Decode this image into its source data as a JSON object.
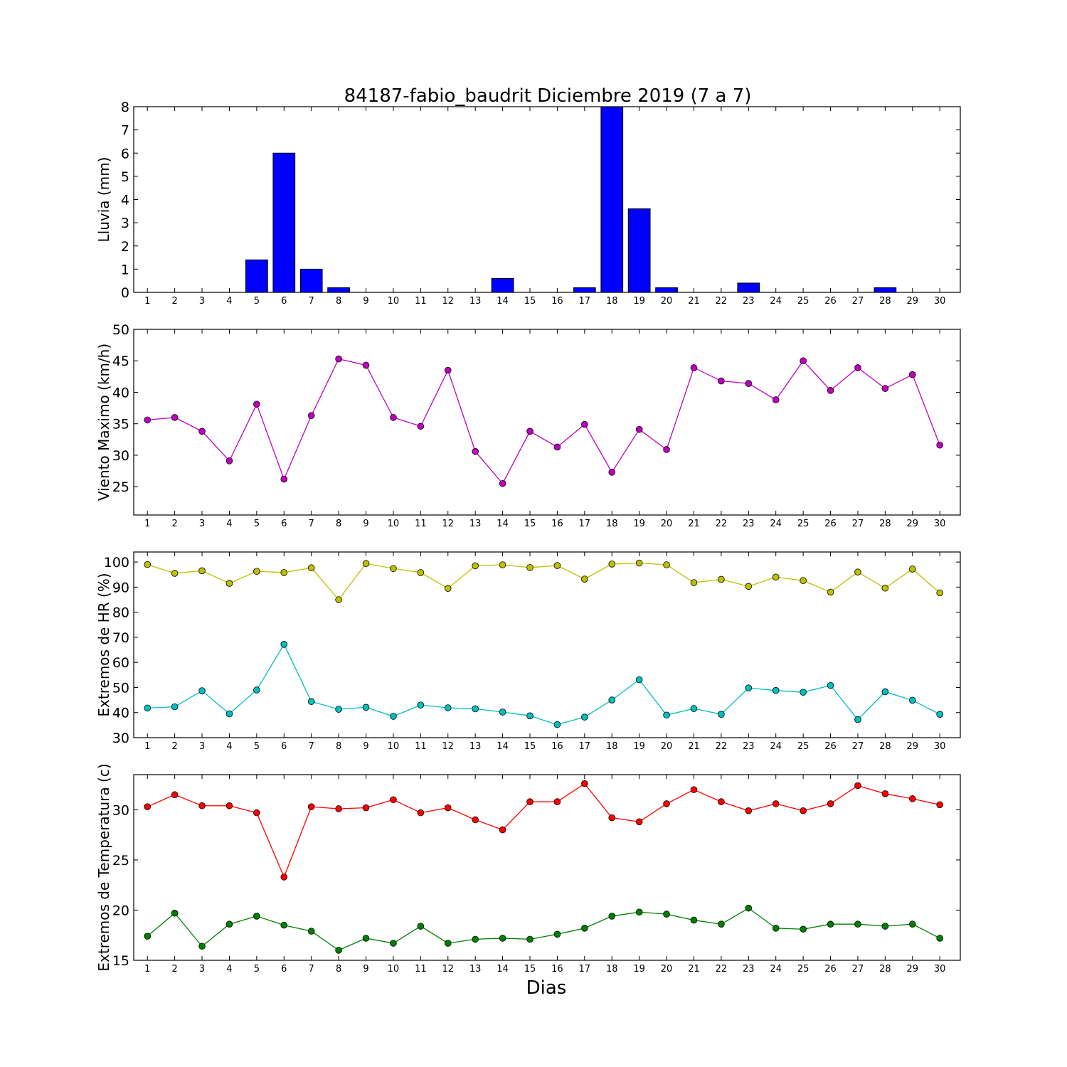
{
  "title": "84187-fabio_baudrit Diciembre 2019  (7 a 7)",
  "xlabel": "Dias",
  "chart_data": [
    {
      "type": "bar",
      "ylabel": "Lluvia (mm)",
      "ylim": [
        0,
        8
      ],
      "yticks": [
        0,
        1,
        2,
        3,
        4,
        5,
        6,
        7,
        8
      ],
      "x": [
        1,
        2,
        3,
        4,
        5,
        6,
        7,
        8,
        9,
        10,
        11,
        12,
        13,
        14,
        15,
        16,
        17,
        18,
        19,
        20,
        21,
        22,
        23,
        24,
        25,
        26,
        27,
        28,
        29,
        30
      ],
      "xticks": [
        1,
        2,
        3,
        4,
        5,
        6,
        7,
        8,
        9,
        10,
        11,
        12,
        13,
        14,
        15,
        16,
        17,
        18,
        19,
        20,
        21,
        22,
        23,
        24,
        25,
        26,
        27,
        28,
        29,
        30
      ],
      "series": [
        {
          "color": "#0000ff",
          "values": [
            0,
            0,
            0,
            0,
            1.4,
            6.0,
            1.0,
            0.2,
            0,
            0,
            0,
            0,
            0,
            0.6,
            0,
            0,
            0.2,
            8.0,
            3.6,
            0.2,
            0,
            0,
            0.4,
            0,
            0,
            0,
            0,
            0.2,
            0,
            0
          ]
        }
      ]
    },
    {
      "type": "line",
      "ylabel": "Viento Maximo (km/h)",
      "ylim": [
        20.5,
        50
      ],
      "yticks": [
        25,
        30,
        35,
        40,
        45,
        50
      ],
      "x": [
        1,
        2,
        3,
        4,
        5,
        6,
        7,
        8,
        9,
        10,
        11,
        12,
        13,
        14,
        15,
        16,
        17,
        18,
        19,
        20,
        21,
        22,
        23,
        24,
        25,
        26,
        27,
        28,
        29,
        30
      ],
      "xticks": [
        1,
        2,
        3,
        4,
        5,
        6,
        7,
        8,
        9,
        10,
        11,
        12,
        13,
        14,
        15,
        16,
        17,
        18,
        19,
        20,
        21,
        22,
        23,
        24,
        25,
        26,
        27,
        28,
        29,
        30
      ],
      "series": [
        {
          "color": "#bf00bf",
          "values": [
            35.6,
            36.0,
            33.8,
            29.1,
            38.1,
            26.2,
            36.3,
            45.3,
            44.3,
            36.0,
            34.6,
            43.5,
            30.6,
            25.5,
            33.8,
            31.3,
            34.9,
            27.3,
            34.1,
            30.9,
            43.9,
            41.8,
            41.4,
            38.8,
            45.0,
            40.3,
            43.9,
            40.6,
            42.8,
            31.6
          ]
        }
      ]
    },
    {
      "type": "line",
      "ylabel": "Extremos de HR (%)",
      "ylim": [
        30,
        104
      ],
      "yticks": [
        30,
        40,
        50,
        60,
        70,
        80,
        90,
        100
      ],
      "x": [
        1,
        2,
        3,
        4,
        5,
        6,
        7,
        8,
        9,
        10,
        11,
        12,
        13,
        14,
        15,
        16,
        17,
        18,
        19,
        20,
        21,
        22,
        23,
        24,
        25,
        26,
        27,
        28,
        29,
        30
      ],
      "xticks": [
        1,
        2,
        3,
        4,
        5,
        6,
        7,
        8,
        9,
        10,
        11,
        12,
        13,
        14,
        15,
        16,
        17,
        18,
        19,
        20,
        21,
        22,
        23,
        24,
        25,
        26,
        27,
        28,
        29,
        30
      ],
      "series": [
        {
          "color": "#bfbf00",
          "values": [
            99.0,
            95.5,
            96.5,
            91.5,
            96.3,
            95.8,
            97.7,
            85.0,
            99.4,
            97.4,
            95.8,
            89.5,
            98.5,
            98.9,
            97.8,
            98.6,
            93.2,
            99.2,
            99.6,
            98.9,
            91.8,
            93.1,
            90.3,
            94.0,
            92.6,
            88.0,
            96.0,
            89.6,
            97.2,
            87.7
          ]
        },
        {
          "color": "#00bfbf",
          "values": [
            41.8,
            42.3,
            48.7,
            39.5,
            49.0,
            67.2,
            44.4,
            41.3,
            42.1,
            38.5,
            43.0,
            41.9,
            41.5,
            40.2,
            38.7,
            35.2,
            38.2,
            45.0,
            53.1,
            39.0,
            41.6,
            39.3,
            49.8,
            48.8,
            48.1,
            50.8,
            37.2,
            48.3,
            44.9,
            39.3
          ]
        }
      ]
    },
    {
      "type": "line",
      "ylabel": "Extremos de Temperatura (c)",
      "ylim": [
        15,
        33.5
      ],
      "yticks": [
        15,
        20,
        25,
        30
      ],
      "x": [
        1,
        2,
        3,
        4,
        5,
        6,
        7,
        8,
        9,
        10,
        11,
        12,
        13,
        14,
        15,
        16,
        17,
        18,
        19,
        20,
        21,
        22,
        23,
        24,
        25,
        26,
        27,
        28,
        29,
        30
      ],
      "xticks": [
        1,
        2,
        3,
        4,
        5,
        6,
        7,
        8,
        9,
        10,
        11,
        12,
        13,
        14,
        15,
        16,
        17,
        18,
        19,
        20,
        21,
        22,
        23,
        24,
        25,
        26,
        27,
        28,
        29,
        30
      ],
      "series": [
        {
          "color": "#ff0000",
          "values": [
            30.3,
            31.5,
            30.4,
            30.4,
            29.7,
            23.3,
            30.3,
            30.1,
            30.2,
            31.0,
            29.7,
            30.2,
            29.0,
            28.0,
            30.8,
            30.8,
            32.6,
            29.2,
            28.8,
            30.6,
            32.0,
            30.8,
            29.9,
            30.6,
            29.9,
            30.6,
            32.4,
            31.6,
            31.1,
            30.5
          ]
        },
        {
          "color": "#008000",
          "values": [
            17.4,
            19.7,
            16.4,
            18.6,
            19.4,
            18.5,
            17.9,
            16.0,
            17.2,
            16.7,
            18.4,
            16.7,
            17.1,
            17.2,
            17.1,
            17.6,
            18.2,
            19.4,
            19.8,
            19.6,
            19.0,
            18.6,
            20.2,
            18.2,
            18.1,
            18.6,
            18.6,
            18.4,
            18.6,
            17.2
          ]
        }
      ]
    }
  ]
}
